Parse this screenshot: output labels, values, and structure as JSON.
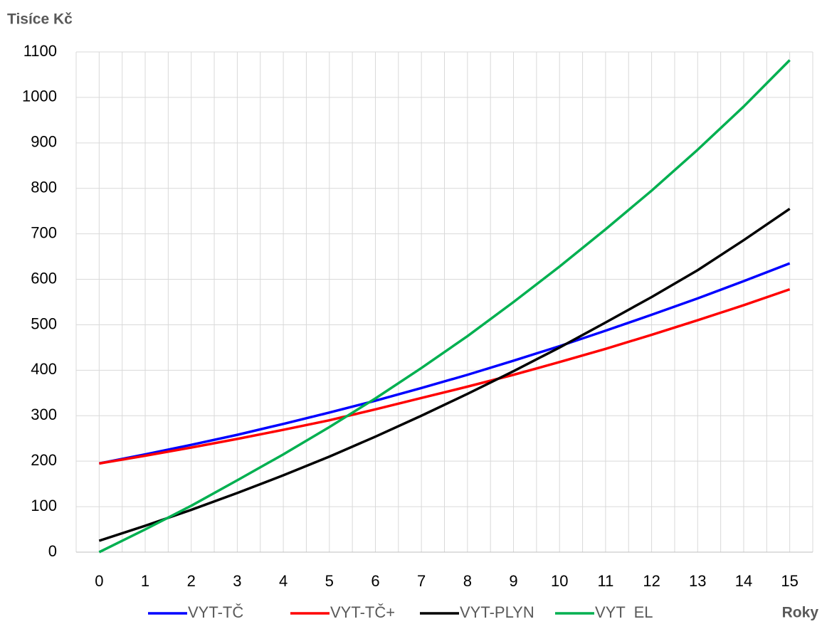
{
  "chart_data": {
    "type": "line",
    "y_label": "Tisíce Kč",
    "x_label": "Roky",
    "x": [
      0,
      1,
      2,
      3,
      4,
      5,
      6,
      7,
      8,
      9,
      10,
      11,
      12,
      13,
      14,
      15
    ],
    "series": [
      {
        "name": "VYT-TČ",
        "color": "#0000ff",
        "values": [
          195,
          215,
          236,
          258,
          282,
          307,
          333,
          361,
          390,
          421,
          453,
          487,
          522,
          558,
          596,
          635
        ]
      },
      {
        "name": "VYT-TČ+",
        "color": "#ff0000",
        "values": [
          195,
          212,
          230,
          249,
          269,
          290,
          314,
          339,
          364,
          390,
          418,
          447,
          478,
          510,
          543,
          578
        ]
      },
      {
        "name": "VYT-PLYN",
        "color": "#000000",
        "values": [
          25,
          58,
          93,
          130,
          169,
          210,
          254,
          300,
          348,
          398,
          450,
          505,
          561,
          620,
          686,
          755
        ]
      },
      {
        "name": "VYT  EL",
        "color": "#00b050",
        "values": [
          0,
          50,
          102,
          158,
          215,
          275,
          338,
          405,
          475,
          550,
          628,
          710,
          795,
          885,
          980,
          1082
        ]
      }
    ],
    "xlim": [
      -0.5,
      15.5
    ],
    "xticks": [
      0,
      1,
      2,
      3,
      4,
      5,
      6,
      7,
      8,
      9,
      10,
      11,
      12,
      13,
      14,
      15
    ],
    "ylim": [
      0,
      1100
    ],
    "yticks": [
      0,
      100,
      200,
      300,
      400,
      500,
      600,
      700,
      800,
      900,
      1000,
      1100
    ],
    "grid": true,
    "x_minor_grid": true,
    "legend": "bottom"
  }
}
